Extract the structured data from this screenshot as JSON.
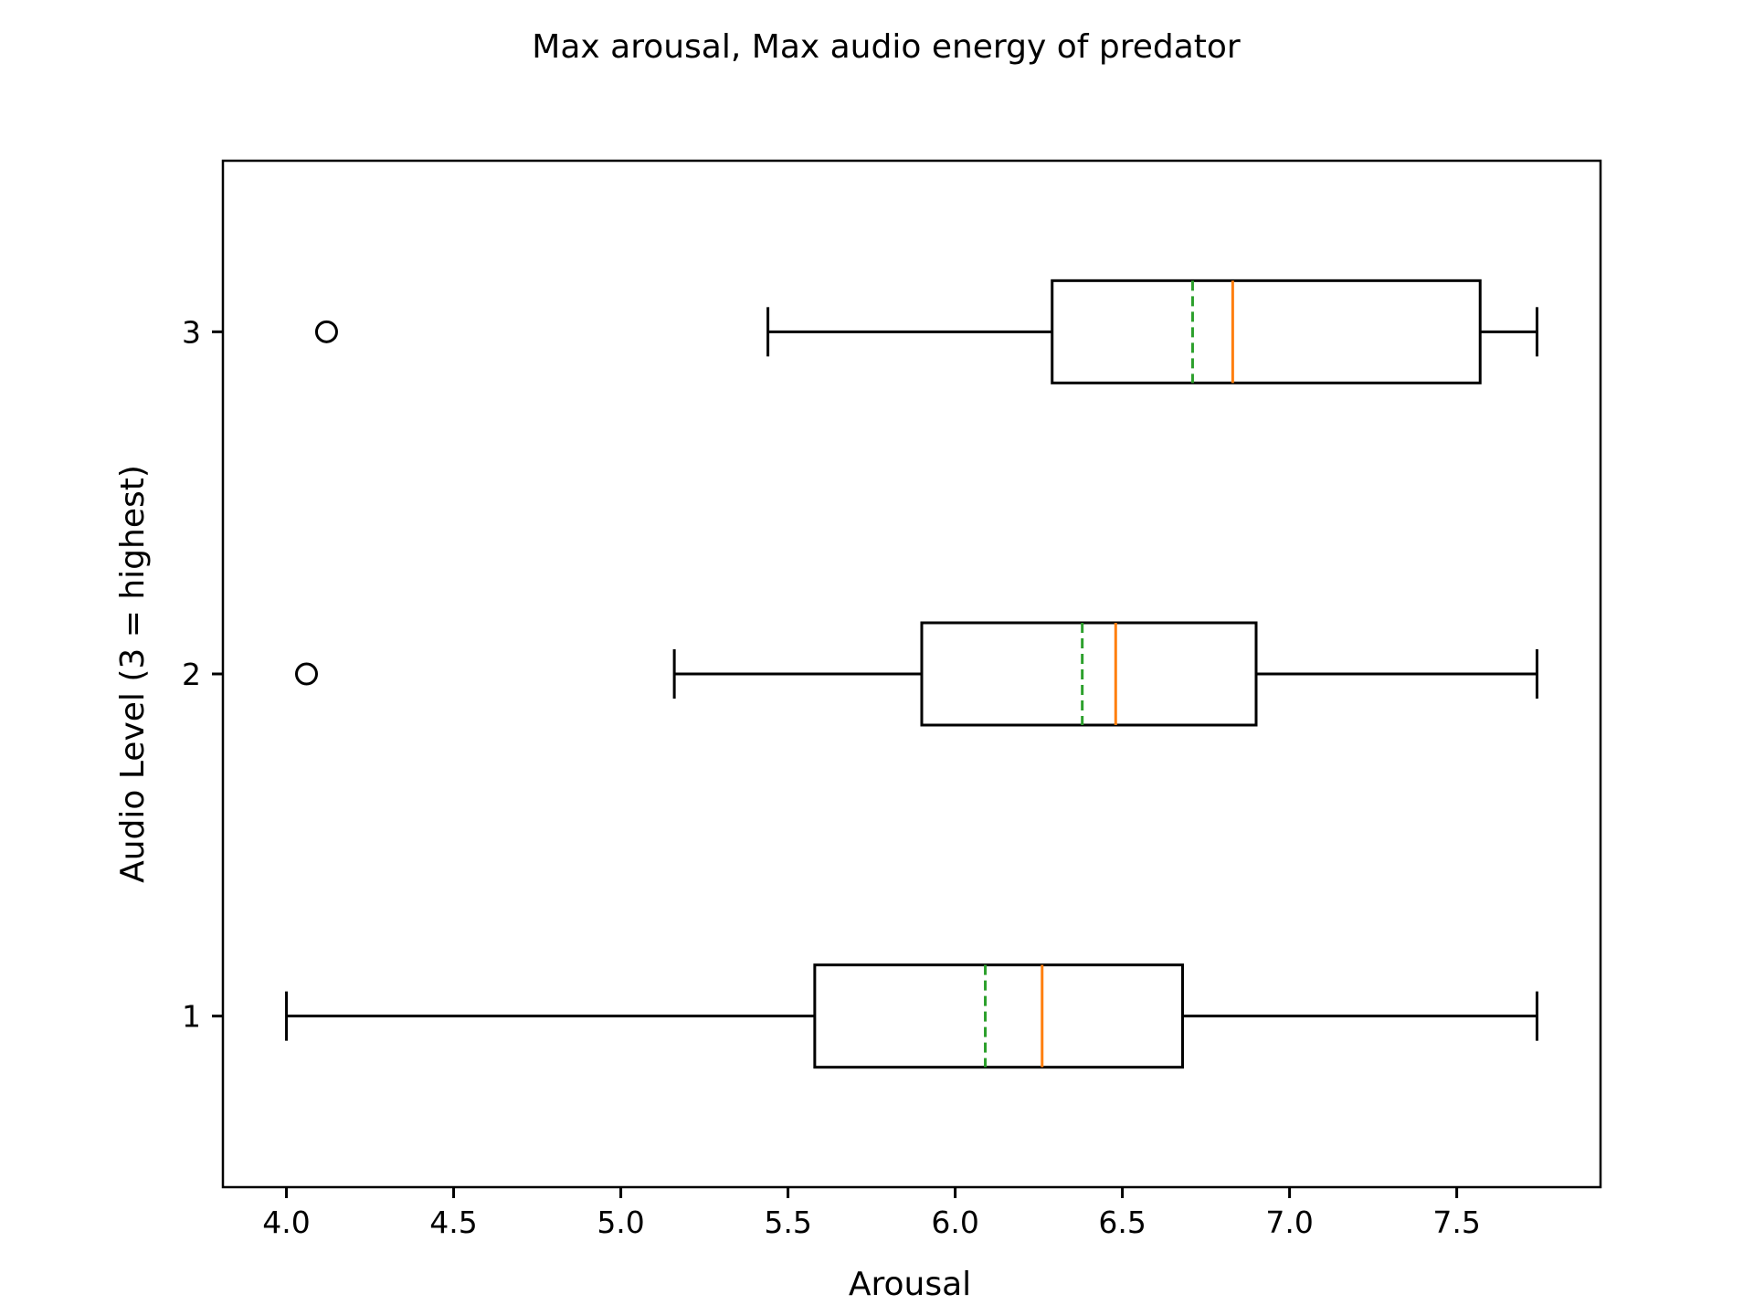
{
  "chart_data": {
    "type": "boxplot",
    "orientation": "horizontal",
    "title": "Max arousal, Max audio energy of predator",
    "xlabel": "Arousal",
    "ylabel": "Audio Level (3 = highest)",
    "xlim": [
      3.81,
      7.93
    ],
    "ylim": [
      0.5,
      3.5
    ],
    "xticks": [
      "4.0",
      "4.5",
      "5.0",
      "5.5",
      "6.0",
      "6.5",
      "7.0",
      "7.5"
    ],
    "yticks": [
      "1",
      "2",
      "3"
    ],
    "grid": false,
    "colors": {
      "box": "#000000",
      "median": "#ff7f0e",
      "mean": "#2ca02c"
    },
    "series": [
      {
        "category": "1",
        "whisker_low": 4.0,
        "q1": 5.58,
        "median": 6.26,
        "mean": 6.09,
        "q3": 6.68,
        "whisker_high": 7.74,
        "outliers": []
      },
      {
        "category": "2",
        "whisker_low": 5.16,
        "q1": 5.9,
        "median": 6.48,
        "mean": 6.38,
        "q3": 6.9,
        "whisker_high": 7.74,
        "outliers": [
          4.06
        ]
      },
      {
        "category": "3",
        "whisker_low": 5.44,
        "q1": 6.29,
        "median": 6.83,
        "mean": 6.71,
        "q3": 7.57,
        "whisker_high": 7.74,
        "outliers": [
          4.12
        ]
      }
    ]
  }
}
